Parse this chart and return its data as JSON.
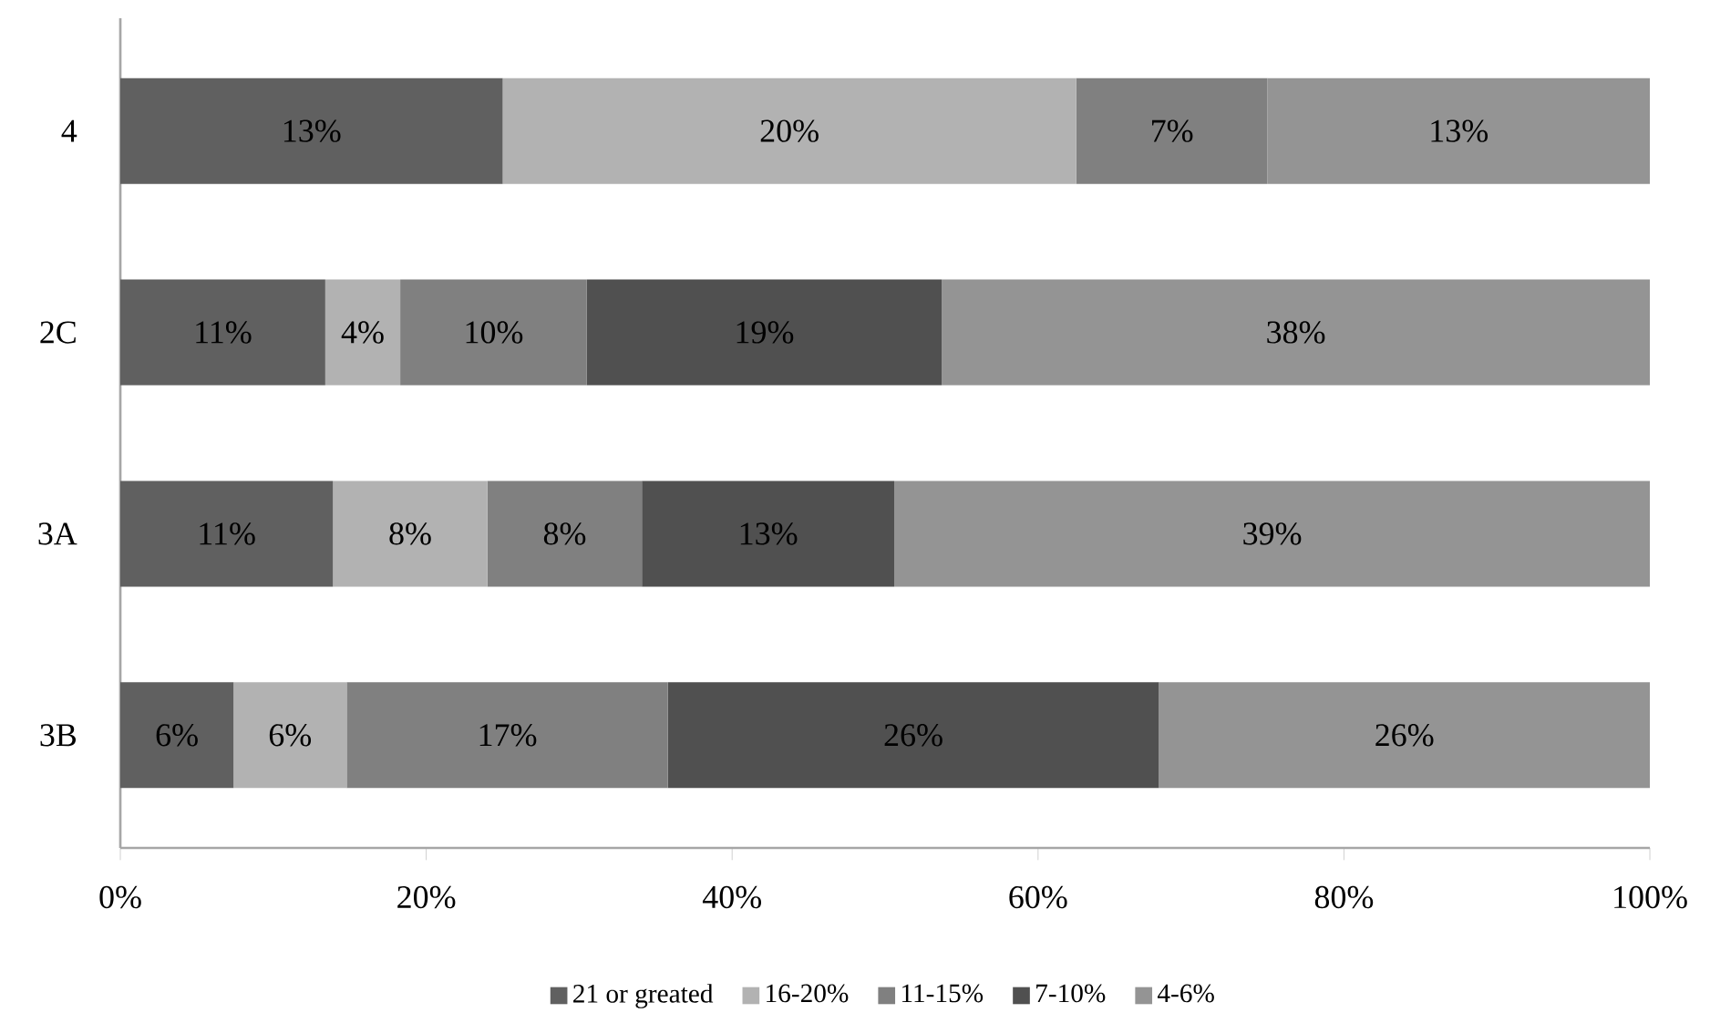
{
  "chart_data": {
    "type": "bar",
    "orientation": "horizontal",
    "stacked": true,
    "categories": [
      "4",
      "2C",
      "3A",
      "3B"
    ],
    "series": [
      {
        "name": "21 or greated",
        "color": "#606060",
        "values": [
          25,
          13.4,
          13.9,
          7.4
        ]
      },
      {
        "name": "16-20%",
        "color": "#b2b2b2",
        "values": [
          37.5,
          4.9,
          10.1,
          7.4
        ]
      },
      {
        "name": "11-15%",
        "color": "#808080",
        "values": [
          12.5,
          12.2,
          10.1,
          21.0
        ]
      },
      {
        "name": "7-10%",
        "color": "#505050",
        "values": [
          0,
          23.2,
          16.5,
          32.1
        ]
      },
      {
        "name": "4-6%",
        "color": "#949494",
        "values": [
          25,
          46.3,
          49.4,
          32.1
        ]
      }
    ],
    "annotations": [
      "13%",
      "20%",
      "7%",
      "13%",
      "11%",
      "4%",
      "10%",
      "19%",
      "38%",
      "11%",
      "8%",
      "8%",
      "13%",
      "39%",
      "6%",
      "6%",
      "17%",
      "26%",
      "26%"
    ],
    "xlim": [
      0,
      100
    ],
    "xticks": [
      {
        "value": 0,
        "label": "0%"
      },
      {
        "value": 20,
        "label": "20%"
      },
      {
        "value": 40,
        "label": "40%"
      },
      {
        "value": 60,
        "label": "60%"
      },
      {
        "value": 80,
        "label": "80%"
      },
      {
        "value": 100,
        "label": "100%"
      }
    ],
    "legend": "bottom",
    "grid": false
  }
}
